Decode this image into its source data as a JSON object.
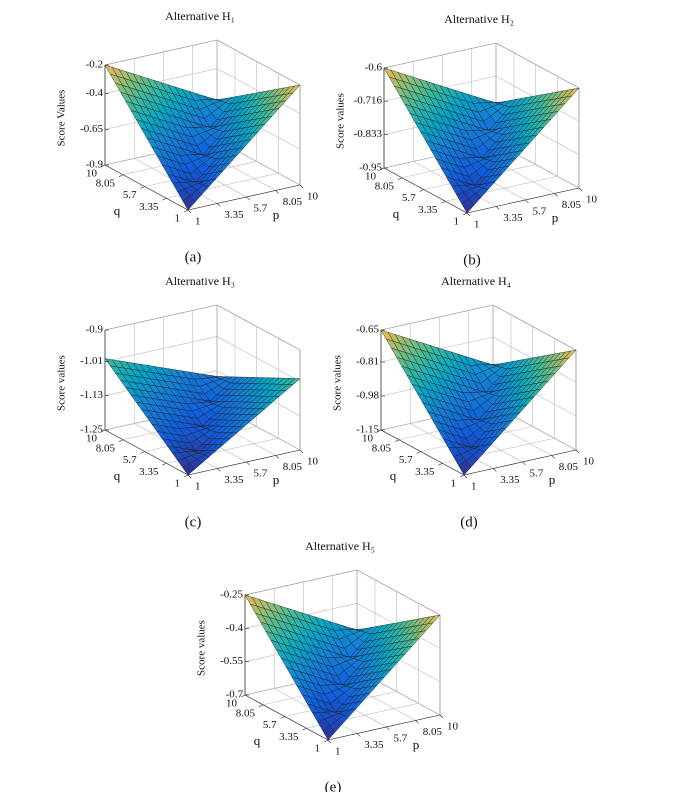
{
  "chart_data": [
    {
      "type": "surface",
      "title": "Alternative H₁",
      "caption": "(a)",
      "xlabel": "p",
      "ylabel": "q",
      "zlabel": "Score Values",
      "colormap": "parula",
      "x": [
        1,
        3.25,
        5.5,
        7.75,
        10
      ],
      "y": [
        1,
        3.25,
        5.5,
        7.75,
        10
      ],
      "z": [
        [
          -0.9,
          -0.725,
          -0.55,
          -0.375,
          -0.2
        ],
        [
          -0.725,
          -0.83,
          -0.655,
          -0.48,
          -0.305
        ],
        [
          -0.55,
          -0.655,
          -0.76,
          -0.585,
          -0.41
        ],
        [
          -0.375,
          -0.48,
          -0.585,
          -0.69,
          -0.515
        ],
        [
          -0.2,
          -0.305,
          -0.41,
          -0.515,
          -0.62
        ]
      ],
      "xlim": [
        1,
        10
      ],
      "ylim": [
        1,
        10
      ],
      "zlim": [
        -0.9,
        -0.2
      ],
      "xticks": [
        1,
        3.35,
        5.7,
        8.05,
        10
      ],
      "yticks": [
        1,
        3.35,
        5.7,
        8.05,
        10
      ],
      "zticks": [
        -0.9,
        -0.65,
        -0.4,
        -0.2
      ],
      "grid": true
    },
    {
      "type": "surface",
      "title": "Alternative H₂",
      "caption": "(b)",
      "xlabel": "p",
      "ylabel": "q",
      "zlabel": "Score values",
      "colormap": "parula",
      "x": [
        1,
        3.25,
        5.5,
        7.75,
        10
      ],
      "y": [
        1,
        3.25,
        5.5,
        7.75,
        10
      ],
      "z": [
        [
          -0.95,
          -0.8625,
          -0.775,
          -0.6875,
          -0.6
        ],
        [
          -0.8625,
          -0.915,
          -0.8275,
          -0.74,
          -0.6525
        ],
        [
          -0.775,
          -0.8275,
          -0.88,
          -0.7925,
          -0.705
        ],
        [
          -0.6875,
          -0.74,
          -0.7925,
          -0.845,
          -0.7575
        ],
        [
          -0.6,
          -0.6525,
          -0.705,
          -0.7575,
          -0.81
        ]
      ],
      "xlim": [
        1,
        10
      ],
      "ylim": [
        1,
        10
      ],
      "zlim": [
        -0.95,
        -0.6
      ],
      "xticks": [
        1,
        3.35,
        5.7,
        8.05,
        10
      ],
      "yticks": [
        1,
        3.35,
        5.7,
        8.05,
        10
      ],
      "zticks": [
        -0.95,
        -0.833,
        -0.716,
        -0.6
      ],
      "grid": true
    },
    {
      "type": "surface",
      "title": "Alternative H₃",
      "caption": "(c)",
      "xlabel": "p",
      "ylabel": "q",
      "zlabel": "Score values",
      "colormap": "parula",
      "x": [
        1,
        3.25,
        5.5,
        7.75,
        10
      ],
      "y": [
        1,
        3.25,
        5.5,
        7.75,
        10
      ],
      "z": [
        [
          -1.25,
          -1.1875,
          -1.125,
          -1.0625,
          -1
        ],
        [
          -1.1875,
          -1.225,
          -1.1625,
          -1.1,
          -1.0375
        ],
        [
          -1.125,
          -1.1625,
          -1.2,
          -1.1375,
          -1.075
        ],
        [
          -1.0625,
          -1.1,
          -1.1375,
          -1.175,
          -1.1125
        ],
        [
          -1,
          -1.0375,
          -1.075,
          -1.1125,
          -1.15
        ]
      ],
      "xlim": [
        1,
        10
      ],
      "ylim": [
        1,
        10
      ],
      "zlim": [
        -1.25,
        -0.9
      ],
      "xticks": [
        1,
        3.35,
        5.7,
        8.05,
        10
      ],
      "yticks": [
        1,
        3.35,
        5.7,
        8.05,
        10
      ],
      "zticks": [
        -1.25,
        -1.13,
        -1.01,
        -0.9
      ],
      "grid": true
    },
    {
      "type": "surface",
      "title": "Alternative H₄",
      "caption": "(d)",
      "xlabel": "p",
      "ylabel": "q",
      "zlabel": "Score values",
      "colormap": "parula",
      "x": [
        1,
        3.25,
        5.5,
        7.75,
        10
      ],
      "y": [
        1,
        3.25,
        5.5,
        7.75,
        10
      ],
      "z": [
        [
          -1.15,
          -1.025,
          -0.9,
          -0.775,
          -0.65
        ],
        [
          -1.025,
          -1.1,
          -0.975,
          -0.85,
          -0.725
        ],
        [
          -0.9,
          -0.975,
          -1.05,
          -0.925,
          -0.8
        ],
        [
          -0.775,
          -0.85,
          -0.925,
          -1,
          -0.875
        ],
        [
          -0.65,
          -0.725,
          -0.8,
          -0.875,
          -0.95
        ]
      ],
      "xlim": [
        1,
        10
      ],
      "ylim": [
        1,
        10
      ],
      "zlim": [
        -1.15,
        -0.65
      ],
      "xticks": [
        1,
        3.35,
        5.7,
        8.05,
        10
      ],
      "yticks": [
        1,
        3.35,
        5.7,
        8.05,
        10
      ],
      "zticks": [
        -1.15,
        -0.98,
        -0.81,
        -0.65
      ],
      "grid": true
    },
    {
      "type": "surface",
      "title": "Alternative H₅",
      "caption": "(e)",
      "xlabel": "p",
      "ylabel": "q",
      "zlabel": "Score values",
      "colormap": "parula",
      "x": [
        1,
        3.25,
        5.5,
        7.75,
        10
      ],
      "y": [
        1,
        3.25,
        5.5,
        7.75,
        10
      ],
      "z": [
        [
          -0.7,
          -0.5875,
          -0.475,
          -0.3625,
          -0.25
        ],
        [
          -0.5875,
          -0.655,
          -0.5425,
          -0.43,
          -0.3175
        ],
        [
          -0.475,
          -0.5425,
          -0.61,
          -0.4975,
          -0.385
        ],
        [
          -0.3625,
          -0.43,
          -0.4975,
          -0.565,
          -0.4525
        ],
        [
          -0.25,
          -0.3175,
          -0.385,
          -0.4525,
          -0.52
        ]
      ],
      "xlim": [
        1,
        10
      ],
      "ylim": [
        1,
        10
      ],
      "zlim": [
        -0.7,
        -0.25
      ],
      "xticks": [
        1,
        3.35,
        5.7,
        8.05,
        10
      ],
      "yticks": [
        1,
        3.35,
        5.7,
        8.05,
        10
      ],
      "zticks": [
        -0.7,
        -0.55,
        -0.4,
        -0.25
      ],
      "grid": true
    }
  ]
}
